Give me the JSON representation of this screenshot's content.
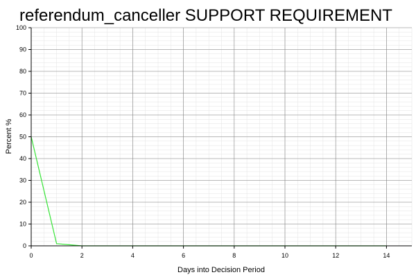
{
  "chart_data": {
    "type": "line",
    "title": "referendum_canceller SUPPORT REQUIREMENT",
    "xlabel": "Days into Decision Period",
    "ylabel": "Percent %",
    "xlim": [
      0,
      15
    ],
    "ylim": [
      0,
      100
    ],
    "x_ticks": [
      0,
      2,
      4,
      6,
      8,
      10,
      12,
      14
    ],
    "y_ticks": [
      0,
      10,
      20,
      30,
      40,
      50,
      60,
      70,
      80,
      90,
      100
    ],
    "grid": true,
    "legend": "none",
    "series": [
      {
        "color": "#33e333",
        "x": [
          0,
          1,
          2,
          3,
          4,
          5,
          6,
          7,
          8,
          9,
          10,
          11,
          12,
          13,
          14
        ],
        "y": [
          50,
          1,
          0,
          0,
          0,
          0,
          0,
          0,
          0,
          0,
          0,
          0,
          0,
          0,
          0
        ]
      }
    ],
    "colors": {
      "major_grid": "#808080",
      "minor_grid": "#e3e3e3",
      "axis": "#000000"
    }
  }
}
